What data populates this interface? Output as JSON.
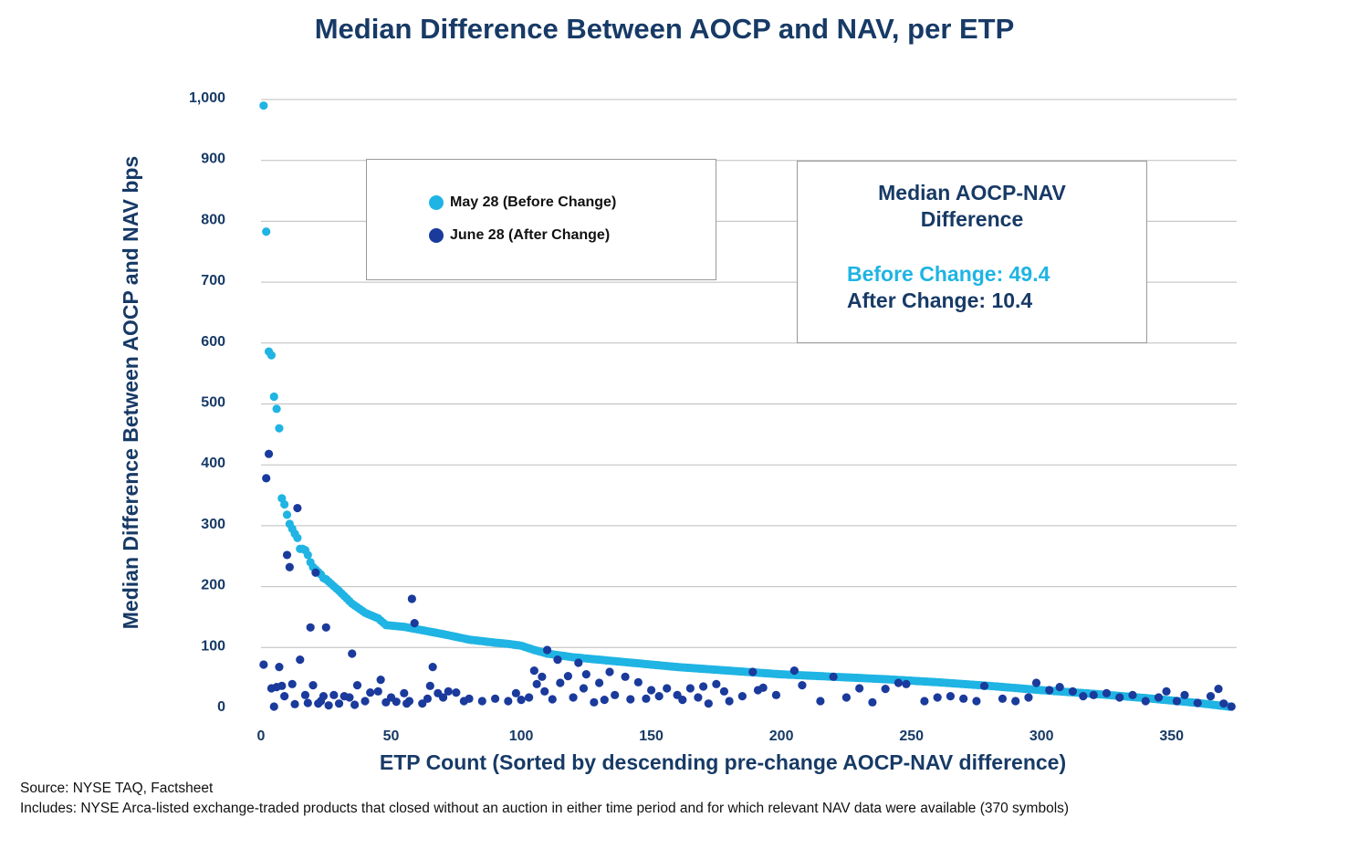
{
  "chart_data": {
    "type": "scatter",
    "title": "Median Difference Between AOCP and NAV, per ETP",
    "xlabel": "ETP Count (Sorted by descending pre-change AOCP-NAV difference)",
    "ylabel": "Median Difference Between AOCP and NAV bps",
    "xlim": [
      0,
      375
    ],
    "ylim": [
      0,
      1000
    ],
    "x_ticks": [
      0,
      50,
      100,
      150,
      200,
      250,
      300,
      350
    ],
    "x_tick_labels": [
      "0",
      "50",
      "100",
      "150",
      "200",
      "250",
      "300",
      "350"
    ],
    "y_ticks": [
      0,
      100,
      200,
      300,
      400,
      500,
      600,
      700,
      800,
      900,
      1000
    ],
    "y_tick_labels": [
      "0",
      "100",
      "200",
      "300",
      "400",
      "500",
      "600",
      "700",
      "800",
      "900",
      "1,000"
    ],
    "grid": "horizontal",
    "colors": {
      "before": "#1fb4e3",
      "after": "#1a3a9c",
      "text": "#173a66",
      "gridline": "#bdbdbd"
    },
    "series": [
      {
        "name": "May 28 (Before Change)",
        "points": [
          [
            1,
            990
          ],
          [
            2,
            783
          ],
          [
            3,
            586
          ],
          [
            4,
            580
          ],
          [
            5,
            512
          ],
          [
            6,
            492
          ],
          [
            7,
            460
          ],
          [
            8,
            345
          ],
          [
            9,
            335
          ],
          [
            10,
            318
          ],
          [
            11,
            303
          ],
          [
            12,
            295
          ],
          [
            13,
            287
          ],
          [
            14,
            280
          ],
          [
            15,
            262
          ],
          [
            16,
            262
          ],
          [
            17,
            260
          ],
          [
            18,
            252
          ],
          [
            19,
            240
          ],
          [
            20,
            232
          ],
          [
            21,
            228
          ],
          [
            22,
            224
          ],
          [
            23,
            220
          ],
          [
            24,
            214
          ],
          [
            25,
            212
          ]
        ],
        "curve": [
          [
            25,
            212
          ],
          [
            30,
            193
          ],
          [
            35,
            172
          ],
          [
            40,
            157
          ],
          [
            45,
            148
          ],
          [
            48,
            137
          ],
          [
            50,
            136
          ],
          [
            55,
            134
          ],
          [
            60,
            130
          ],
          [
            70,
            122
          ],
          [
            80,
            113
          ],
          [
            90,
            108
          ],
          [
            95,
            106
          ],
          [
            100,
            103
          ],
          [
            105,
            96
          ],
          [
            110,
            90
          ],
          [
            120,
            84
          ],
          [
            140,
            76
          ],
          [
            160,
            68
          ],
          [
            180,
            62
          ],
          [
            200,
            56
          ],
          [
            220,
            52
          ],
          [
            240,
            48
          ],
          [
            260,
            43
          ],
          [
            280,
            37
          ],
          [
            300,
            30
          ],
          [
            320,
            24
          ],
          [
            340,
            17
          ],
          [
            360,
            9
          ],
          [
            368,
            5
          ],
          [
            372,
            3
          ]
        ]
      },
      {
        "name": "June 28 (After Change)",
        "points": [
          [
            1,
            72
          ],
          [
            2,
            378
          ],
          [
            3,
            418
          ],
          [
            4,
            33
          ],
          [
            5,
            3
          ],
          [
            6,
            35
          ],
          [
            7,
            68
          ],
          [
            8,
            37
          ],
          [
            9,
            20
          ],
          [
            10,
            252
          ],
          [
            11,
            232
          ],
          [
            12,
            40
          ],
          [
            13,
            7
          ],
          [
            14,
            329
          ],
          [
            15,
            80
          ],
          [
            17,
            22
          ],
          [
            18,
            9
          ],
          [
            19,
            133
          ],
          [
            20,
            38
          ],
          [
            21,
            223
          ],
          [
            22,
            8
          ],
          [
            23,
            12
          ],
          [
            24,
            20
          ],
          [
            25,
            133
          ],
          [
            26,
            5
          ],
          [
            28,
            22
          ],
          [
            30,
            8
          ],
          [
            32,
            20
          ],
          [
            34,
            18
          ],
          [
            35,
            90
          ],
          [
            36,
            6
          ],
          [
            37,
            38
          ],
          [
            40,
            12
          ],
          [
            42,
            26
          ],
          [
            45,
            28
          ],
          [
            46,
            47
          ],
          [
            48,
            10
          ],
          [
            50,
            18
          ],
          [
            52,
            11
          ],
          [
            55,
            25
          ],
          [
            56,
            8
          ],
          [
            57,
            12
          ],
          [
            58,
            180
          ],
          [
            59,
            140
          ],
          [
            62,
            8
          ],
          [
            64,
            16
          ],
          [
            65,
            37
          ],
          [
            66,
            68
          ],
          [
            68,
            25
          ],
          [
            70,
            18
          ],
          [
            72,
            28
          ],
          [
            75,
            26
          ],
          [
            78,
            12
          ],
          [
            80,
            16
          ],
          [
            85,
            12
          ],
          [
            90,
            16
          ],
          [
            95,
            12
          ],
          [
            98,
            25
          ],
          [
            100,
            14
          ],
          [
            103,
            18
          ],
          [
            105,
            62
          ],
          [
            106,
            40
          ],
          [
            108,
            52
          ],
          [
            109,
            28
          ],
          [
            110,
            96
          ],
          [
            112,
            15
          ],
          [
            114,
            80
          ],
          [
            115,
            42
          ],
          [
            118,
            53
          ],
          [
            120,
            18
          ],
          [
            122,
            75
          ],
          [
            124,
            33
          ],
          [
            125,
            56
          ],
          [
            128,
            10
          ],
          [
            130,
            42
          ],
          [
            132,
            14
          ],
          [
            134,
            60
          ],
          [
            136,
            22
          ],
          [
            140,
            52
          ],
          [
            142,
            15
          ],
          [
            145,
            43
          ],
          [
            148,
            16
          ],
          [
            150,
            30
          ],
          [
            153,
            20
          ],
          [
            156,
            33
          ],
          [
            160,
            22
          ],
          [
            162,
            14
          ],
          [
            165,
            33
          ],
          [
            168,
            18
          ],
          [
            170,
            36
          ],
          [
            172,
            8
          ],
          [
            175,
            40
          ],
          [
            178,
            28
          ],
          [
            180,
            12
          ],
          [
            185,
            20
          ],
          [
            189,
            60
          ],
          [
            191,
            30
          ],
          [
            193,
            34
          ],
          [
            198,
            22
          ],
          [
            205,
            62
          ],
          [
            208,
            38
          ],
          [
            215,
            12
          ],
          [
            220,
            52
          ],
          [
            225,
            18
          ],
          [
            230,
            33
          ],
          [
            235,
            10
          ],
          [
            240,
            32
          ],
          [
            245,
            42
          ],
          [
            248,
            40
          ],
          [
            255,
            12
          ],
          [
            260,
            18
          ],
          [
            265,
            20
          ],
          [
            270,
            16
          ],
          [
            275,
            12
          ],
          [
            278,
            37
          ],
          [
            285,
            16
          ],
          [
            290,
            12
          ],
          [
            295,
            18
          ],
          [
            298,
            42
          ],
          [
            303,
            30
          ],
          [
            307,
            35
          ],
          [
            312,
            28
          ],
          [
            316,
            20
          ],
          [
            320,
            22
          ],
          [
            325,
            25
          ],
          [
            330,
            18
          ],
          [
            335,
            22
          ],
          [
            340,
            12
          ],
          [
            345,
            18
          ],
          [
            348,
            28
          ],
          [
            352,
            12
          ],
          [
            355,
            22
          ],
          [
            360,
            9
          ],
          [
            365,
            20
          ],
          [
            368,
            32
          ],
          [
            370,
            8
          ],
          [
            373,
            3
          ]
        ]
      }
    ]
  },
  "legend": {
    "before_label": "May 28 (Before Change)",
    "after_label": "June 28 (After Change)"
  },
  "stats_box": {
    "title": "Median AOCP-NAV\nDifference",
    "before_text": "Before Change: 49.4",
    "after_text": "After Change: 10.4"
  },
  "footnotes": {
    "source": "Source: NYSE TAQ, Factsheet",
    "includes": "Includes: NYSE Arca-listed exchange-traded products that closed without an auction in either time period and for which relevant NAV data were available (370 symbols)"
  }
}
